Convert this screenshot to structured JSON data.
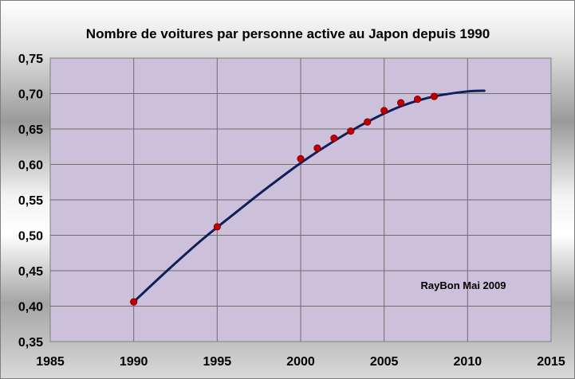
{
  "chart_data": {
    "type": "scatter",
    "title": "Nombre de voitures par personne active au Japon depuis 1990",
    "annotation": "RayBon Mai 2009",
    "xlabel": "",
    "ylabel": "",
    "xlim": [
      1985,
      2015
    ],
    "ylim": [
      0.35,
      0.75
    ],
    "x_ticks": [
      "1985",
      "1990",
      "1995",
      "2000",
      "2005",
      "2010",
      "2015"
    ],
    "y_ticks": [
      "0,35",
      "0,40",
      "0,45",
      "0,50",
      "0,55",
      "0,60",
      "0,65",
      "0,70",
      "0,75"
    ],
    "grid": true,
    "series": [
      {
        "kind": "points",
        "x": [
          1990,
          1995,
          2000,
          2001,
          2002,
          2003,
          2004,
          2005,
          2006,
          2007,
          2008
        ],
        "y": [
          0.406,
          0.512,
          0.608,
          0.623,
          0.637,
          0.647,
          0.66,
          0.676,
          0.687,
          0.692,
          0.696
        ]
      },
      {
        "kind": "trend",
        "x": [
          1990,
          1992,
          1994,
          1996,
          1998,
          2000,
          2002,
          2004,
          2006,
          2008,
          2010,
          2011
        ],
        "y": [
          0.406,
          0.45,
          0.492,
          0.53,
          0.567,
          0.602,
          0.633,
          0.66,
          0.682,
          0.696,
          0.703,
          0.704
        ]
      }
    ],
    "colors": {
      "plot_background": "#ccc0da",
      "grid": "#6e6e6e",
      "point_fill": "#c00000",
      "trend_line": "#0f1f5c"
    }
  }
}
